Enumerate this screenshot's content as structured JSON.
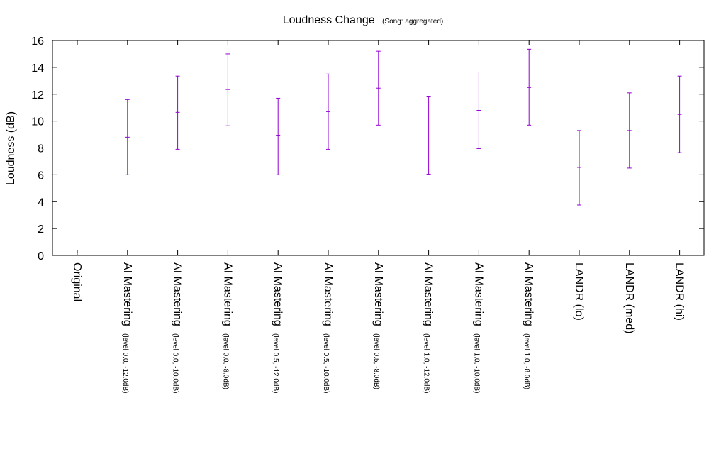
{
  "chart_data": {
    "type": "errorbar",
    "title": "Loudness Change",
    "subtitle": "(Song: aggregated)",
    "ylabel": "Loudness (dB)",
    "xlabel": "",
    "ylim": [
      0,
      16
    ],
    "yticks": [
      0,
      2,
      4,
      6,
      8,
      10,
      12,
      14,
      16
    ],
    "grid": false,
    "series_color": "#9400d3",
    "categories": [
      {
        "label": "Original",
        "sub": ""
      },
      {
        "label": "AI Mastering",
        "sub": "(level 0.0, -12.0dB)"
      },
      {
        "label": "AI Mastering",
        "sub": "(level 0.0, -10.0dB)"
      },
      {
        "label": "AI Mastering",
        "sub": "(level 0.0, -8.0dB)"
      },
      {
        "label": "AI Mastering",
        "sub": "(level 0.5, -12.0dB)"
      },
      {
        "label": "AI Mastering",
        "sub": "(level 0.5, -10.0dB)"
      },
      {
        "label": "AI Mastering",
        "sub": "(level 0.5, -8.0dB)"
      },
      {
        "label": "AI Mastering",
        "sub": "(level 1.0, -12.0dB)"
      },
      {
        "label": "AI Mastering",
        "sub": "(level 1.0, -10.0dB)"
      },
      {
        "label": "AI Mastering",
        "sub": "(level 1.0, -8.0dB)"
      },
      {
        "label": "LANDR (lo)",
        "sub": ""
      },
      {
        "label": "LANDR (med)",
        "sub": ""
      },
      {
        "label": "LANDR (hi)",
        "sub": ""
      }
    ],
    "points": [
      {
        "mean": 0,
        "low": 0,
        "high": 0.2
      },
      {
        "mean": 8.8,
        "low": 6.0,
        "high": 11.6
      },
      {
        "mean": 10.65,
        "low": 7.9,
        "high": 13.35
      },
      {
        "mean": 12.35,
        "low": 9.65,
        "high": 15.0
      },
      {
        "mean": 8.9,
        "low": 6.0,
        "high": 11.7
      },
      {
        "mean": 10.7,
        "low": 7.9,
        "high": 13.5
      },
      {
        "mean": 12.45,
        "low": 9.7,
        "high": 15.2
      },
      {
        "mean": 8.95,
        "low": 6.05,
        "high": 11.8
      },
      {
        "mean": 10.8,
        "low": 7.95,
        "high": 13.65
      },
      {
        "mean": 12.5,
        "low": 9.7,
        "high": 15.35
      },
      {
        "mean": 6.55,
        "low": 3.75,
        "high": 9.3
      },
      {
        "mean": 9.3,
        "low": 6.5,
        "high": 12.1
      },
      {
        "mean": 10.5,
        "low": 7.65,
        "high": 13.35
      }
    ]
  }
}
